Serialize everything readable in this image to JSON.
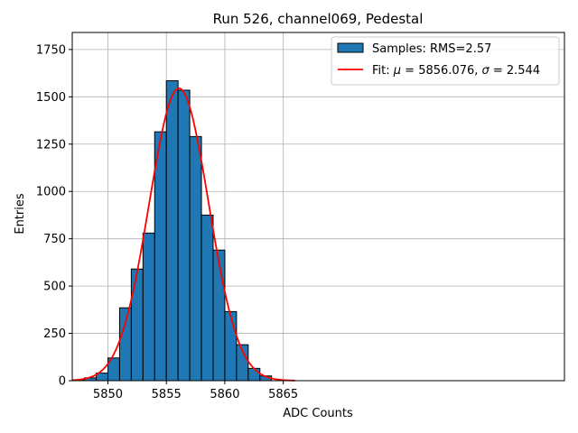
{
  "chart_data": {
    "type": "bar",
    "title": "Run 526, channel069, Pedestal",
    "xlabel": "ADC Counts",
    "ylabel": "Entries",
    "xlim": [
      5846.95,
      5889.05
    ],
    "ylim": [
      0,
      1840
    ],
    "grid": true,
    "legend_position": "top-right",
    "x_ticks": [
      5850,
      5855,
      5860,
      5865
    ],
    "x_tick_labels": [
      "5850",
      "5855",
      "5860",
      "5865"
    ],
    "y_ticks": [
      0,
      250,
      500,
      750,
      1000,
      1250,
      1500,
      1750
    ],
    "y_tick_labels": [
      "0",
      "250",
      "500",
      "750",
      "1000",
      "1250",
      "1500",
      "1750"
    ],
    "bins": {
      "edges": [
        5847,
        5848,
        5849,
        5850,
        5851,
        5852,
        5853,
        5854,
        5855,
        5856,
        5857,
        5858,
        5859,
        5860,
        5861,
        5862,
        5863,
        5864
      ],
      "counts": [
        5,
        15,
        40,
        120,
        385,
        590,
        780,
        1315,
        1585,
        1535,
        1290,
        875,
        690,
        365,
        190,
        65,
        25
      ],
      "color": "#1f77b4",
      "edgecolor": "#000000"
    },
    "series": [
      {
        "name": "Samples: RMS=2.57",
        "kind": "histogram"
      },
      {
        "name": "Fit",
        "kind": "gaussian",
        "mu": 5856.076,
        "sigma": 2.544,
        "amplitude": 1545,
        "x_range": [
          5847,
          5866
        ],
        "color": "#ff0000"
      }
    ],
    "legend": {
      "hist_label": "Samples: RMS=2.57",
      "fit_prefix": "Fit: ",
      "mu_symbol": "μ",
      "mu_text": " = 5856.076, ",
      "sigma_symbol": "σ",
      "sigma_text": " = 2.544"
    }
  }
}
